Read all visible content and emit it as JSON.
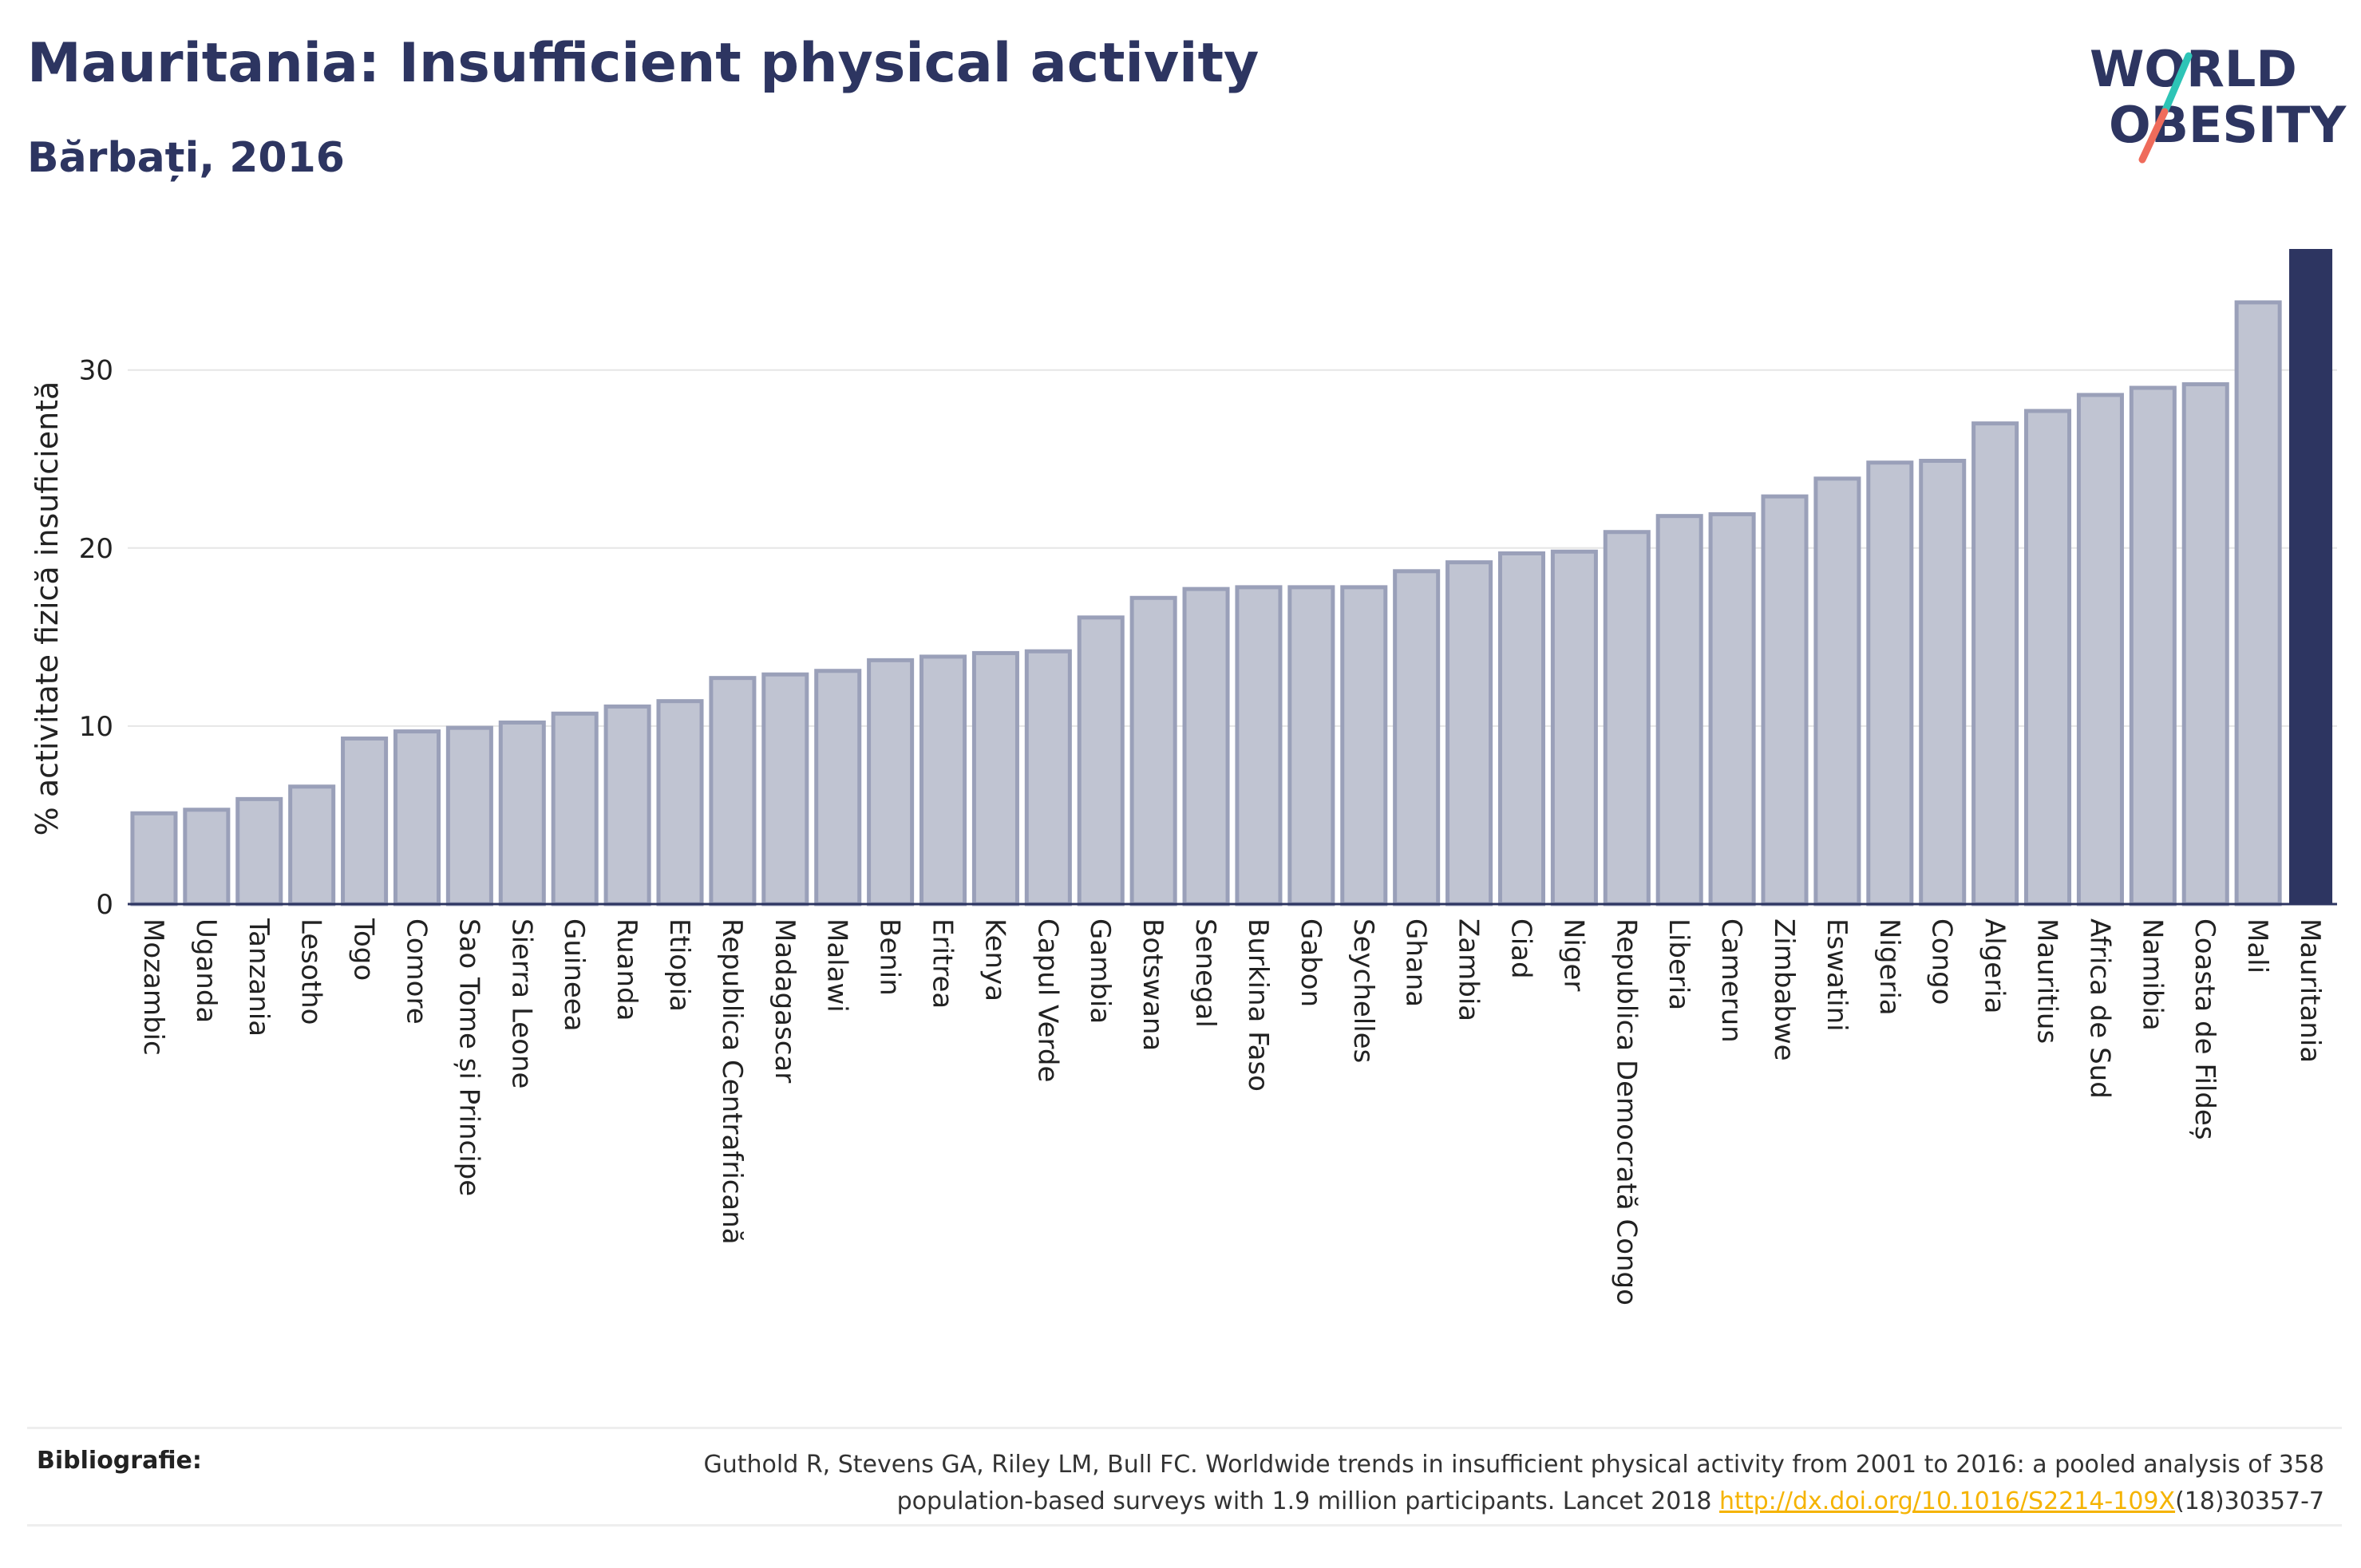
{
  "header": {
    "title": "Mauritania: Insufficient physical activity",
    "subtitle": "Bărbați, 2016"
  },
  "logo": {
    "line1": "WORLD",
    "line2": "OBESITY"
  },
  "colors": {
    "bar_fill": "#c0c4d2",
    "bar_stroke": "#9aa0b9",
    "highlight": "#2d3561",
    "grid": "#e6e6e6",
    "text": "#2d3561",
    "logo_teal": "#2ec4b6",
    "logo_coral": "#ef6b5b"
  },
  "chart_data": {
    "type": "bar",
    "title": "",
    "xlabel": "",
    "ylabel": "% activitate fizică insuficientă",
    "ylim": [
      0,
      36.8
    ],
    "yticks": [
      0,
      10,
      20,
      30
    ],
    "grid": true,
    "highlight_category": "Mauritania",
    "categories": [
      "Mozambic",
      "Uganda",
      "Tanzania",
      "Lesotho",
      "Togo",
      "Comore",
      "Sao Tome și Principe",
      "Sierra Leone",
      "Guineea",
      "Ruanda",
      "Etiopia",
      "Republica Centrafricană",
      "Madagascar",
      "Malawi",
      "Benin",
      "Eritrea",
      "Kenya",
      "Capul Verde",
      "Gambia",
      "Botswana",
      "Senegal",
      "Burkina Faso",
      "Gabon",
      "Seychelles",
      "Ghana",
      "Zambia",
      "Ciad",
      "Niger",
      "Republica Democrată Congo",
      "Liberia",
      "Camerun",
      "Zimbabwe",
      "Eswatini",
      "Nigeria",
      "Congo",
      "Algeria",
      "Mauritius",
      "Africa de Sud",
      "Namibia",
      "Coasta de Fildeș",
      "Mali",
      "Mauritania"
    ],
    "values": [
      5.1,
      5.3,
      5.9,
      6.6,
      9.3,
      9.7,
      9.9,
      10.2,
      10.7,
      11.1,
      11.4,
      12.7,
      12.9,
      13.1,
      13.7,
      13.9,
      14.1,
      14.2,
      16.1,
      17.2,
      17.7,
      17.8,
      17.8,
      17.8,
      18.7,
      19.2,
      19.7,
      19.8,
      20.9,
      21.8,
      21.9,
      22.9,
      23.9,
      24.8,
      24.9,
      27.0,
      27.7,
      28.6,
      29.0,
      29.2,
      33.8,
      36.8
    ]
  },
  "bibliography": {
    "label": "Bibliografie:",
    "line1": "Guthold R, Stevens GA, Riley LM, Bull FC. Worldwide trends in insufficient physical activity from 2001 to 2016: a pooled analysis of 358",
    "line2_pre": "population-based surveys with 1.9 million participants. Lancet 2018 ",
    "link": "http://dx.doi.org/10.1016/S2214-109X",
    "line2_post": "(18)30357-7"
  }
}
